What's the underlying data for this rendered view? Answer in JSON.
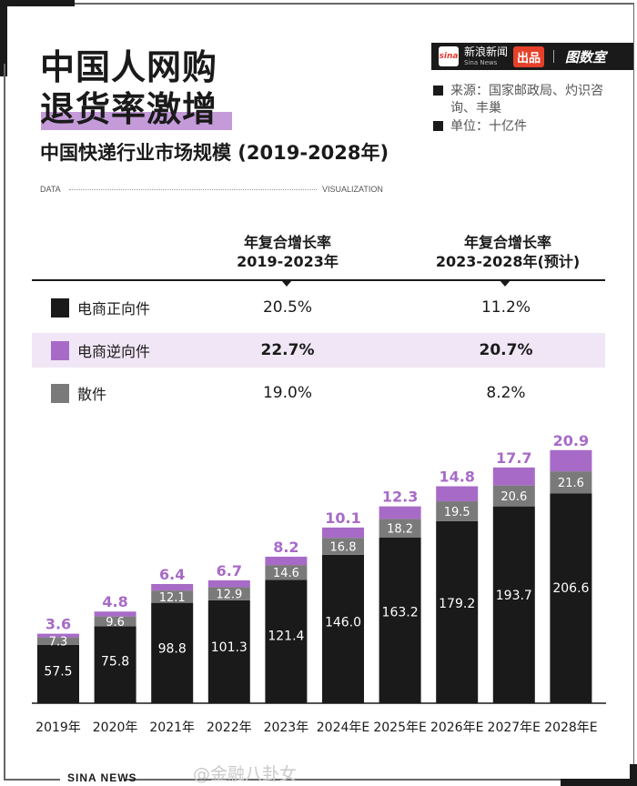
{
  "header": {
    "title_line1": "中国人网购",
    "title_line2": "退货率激增",
    "subtitle": "中国快递行业市场规模 (2019-2028年)",
    "data_label": "DATA",
    "viz_label": "VISUALIZATION"
  },
  "brand": {
    "sina_logo": "sina",
    "sina_cn": "新浪新闻",
    "sina_en": "Sina News",
    "produced": "出品",
    "partner": "图数室"
  },
  "notes": {
    "source_label": "来源：国家邮政局、灼识咨",
    "source_cont": "询、丰巢",
    "unit": "单位：十亿件"
  },
  "table": {
    "col1_line1": "年复合增长率",
    "col1_line2": "2019-2023年",
    "col2_line1": "年复合增长率",
    "col2_line2": "2023-2028年(预计)",
    "rows": [
      {
        "label": "电商正向件",
        "v1": "20.5%",
        "v2": "11.2%",
        "color": "#1a1a1a"
      },
      {
        "label": "电商逆向件",
        "v1": "22.7%",
        "v2": "20.7%",
        "color": "#a76bc7"
      },
      {
        "label": "散件",
        "v1": "19.0%",
        "v2": "8.2%",
        "color": "#7a7a7a"
      }
    ]
  },
  "chart_data": {
    "type": "bar",
    "stacked": true,
    "title": "中国快递行业市场规模 (2019-2028年)",
    "unit": "十亿件",
    "categories": [
      "2019年",
      "2020年",
      "2021年",
      "2022年",
      "2023年",
      "2024年E",
      "2025年E",
      "2026年E",
      "2027年E",
      "2028年E"
    ],
    "series": [
      {
        "name": "电商正向件",
        "color": "#1a1a1a",
        "values": [
          57.5,
          75.8,
          98.8,
          101.3,
          121.4,
          146.0,
          163.2,
          179.2,
          193.7,
          206.6
        ]
      },
      {
        "name": "散件",
        "color": "#7a7a7a",
        "values": [
          7.3,
          9.6,
          12.1,
          12.9,
          14.6,
          16.8,
          18.2,
          19.5,
          20.6,
          21.6
        ]
      },
      {
        "name": "电商逆向件",
        "color": "#a76bc7",
        "values": [
          3.6,
          4.8,
          6.4,
          6.7,
          8.2,
          10.1,
          12.3,
          14.8,
          17.7,
          20.9
        ]
      }
    ],
    "xlabel": "",
    "ylabel": "",
    "grid": false
  },
  "footer": {
    "sina_news": "SINA  NEWS",
    "watermark": "@金融八卦女"
  }
}
